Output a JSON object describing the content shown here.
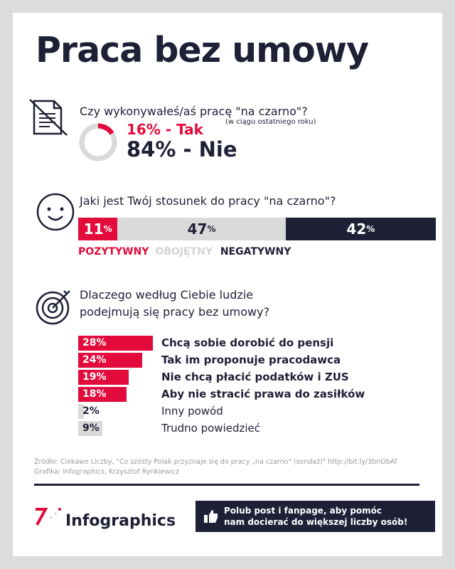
{
  "title": "Praca bez umowy",
  "colors": {
    "accent": "#e30b3c",
    "navy": "#1e2036",
    "gray": "#d9d9d9"
  },
  "section1": {
    "question": "Czy wykonywałeś/aś pracę \"na czarno\"?",
    "note": "(w ciągu ostatniego roku)",
    "yes_label": "16% - Tak",
    "no_label": "84% - Nie",
    "icon": "document-crossed-icon"
  },
  "section2": {
    "question": "Jaki jest Twój stosunek do pracy \"na czarno\"?",
    "icon": "smiley-icon",
    "segments": [
      {
        "num": "11",
        "unit": "%",
        "label": "POZYTYWNY"
      },
      {
        "num": "47",
        "unit": "%",
        "label": "OBOJĘTNY"
      },
      {
        "num": "42",
        "unit": "%",
        "label": "NEGATYWNY"
      }
    ]
  },
  "section3": {
    "question_line1": "Dlaczego według Ciebie ludzie",
    "question_line2": "podejmują się pracy bez umowy?",
    "icon": "target-icon",
    "rows": [
      {
        "pct": "28%",
        "label": "Chcą sobie dorobić do pensji"
      },
      {
        "pct": "24%",
        "label": "Tak im proponuje pracodawca"
      },
      {
        "pct": "19%",
        "label": "Nie chcą płacić podatków i ZUS"
      },
      {
        "pct": "18%",
        "label": "Aby nie stracić prawa do zasiłków"
      },
      {
        "pct": "2%",
        "label": "Inny powód"
      },
      {
        "pct": "9%",
        "label": "Trudno powiedzieć"
      }
    ]
  },
  "footer": {
    "source": "Źródło: Ciekawe Liczby, \"Co szósty Polak przyznaje się do pracy „na czarno\" (sondaż)\" http://bit.ly/3bnObAf",
    "credit": "Grafika: Infographics, Krzysztof Rynkiewicz",
    "logo": "Infographics",
    "cta_line1": "Polub post i fanpage, aby pomóc",
    "cta_line2": "nam docierać do większej liczby osób!"
  },
  "chart_data": [
    {
      "type": "pie",
      "title": "Czy wykonywałeś/aś pracę \"na czarno\"?",
      "categories": [
        "Tak",
        "Nie"
      ],
      "values": [
        16,
        84
      ]
    },
    {
      "type": "bar",
      "title": "Jaki jest Twój stosunek do pracy \"na czarno\"?",
      "stacked": true,
      "categories": [
        "POZYTYWNY",
        "OBOJĘTNY",
        "NEGATYWNY"
      ],
      "values": [
        11,
        47,
        42
      ]
    },
    {
      "type": "bar",
      "title": "Dlaczego według Ciebie ludzie podejmują się pracy bez umowy?",
      "orientation": "horizontal",
      "categories": [
        "Chcą sobie dorobić do pensji",
        "Tak im proponuje pracodawca",
        "Nie chcą płacić podatków i ZUS",
        "Aby nie stracić prawa do zasiłków",
        "Inny powód",
        "Trudno powiedzieć"
      ],
      "values": [
        28,
        24,
        19,
        18,
        2,
        9
      ],
      "highlighted": [
        true,
        true,
        true,
        true,
        false,
        false
      ]
    }
  ]
}
